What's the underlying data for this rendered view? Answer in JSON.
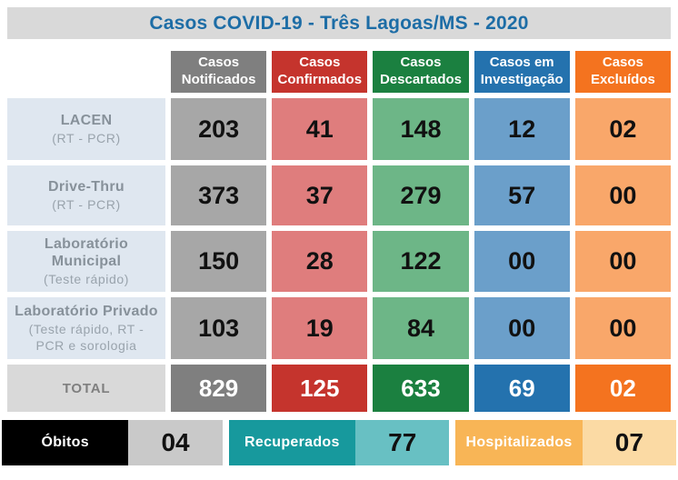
{
  "title": "Casos COVID-19 - Três Lagoas/MS - 2020",
  "columns": [
    {
      "label": "Casos Notificados",
      "color": "#7f7f7f",
      "light_color": "#a7a7a7"
    },
    {
      "label": "Casos Confirmados",
      "color": "#c5342d",
      "light_color": "#df7d7d"
    },
    {
      "label": "Casos Descartados",
      "color": "#1b8040",
      "light_color": "#6db687"
    },
    {
      "label": "Casos em Investigação",
      "color": "#2472ae",
      "light_color": "#6b9fca"
    },
    {
      "label": "Casos Excluídos",
      "color": "#f4731f",
      "light_color": "#f9a76a"
    }
  ],
  "rows": [
    {
      "name": "LACEN",
      "sub": "(RT - PCR)",
      "values": [
        "203",
        "41",
        "148",
        "12",
        "02"
      ]
    },
    {
      "name": "Drive-Thru",
      "sub": "(RT - PCR)",
      "values": [
        "373",
        "37",
        "279",
        "57",
        "00"
      ]
    },
    {
      "name": "Laboratório Municipal",
      "sub": "(Teste rápido)",
      "values": [
        "150",
        "28",
        "122",
        "00",
        "00"
      ]
    },
    {
      "name": "Laboratório Privado",
      "sub": "(Teste rápido, RT - PCR e sorologia",
      "values": [
        "103",
        "19",
        "84",
        "00",
        "00"
      ]
    }
  ],
  "total": {
    "label": "TOTAL",
    "values": [
      "829",
      "125",
      "633",
      "69",
      "02"
    ]
  },
  "summary": [
    {
      "label": "Óbitos",
      "value": "04",
      "label_color": "#000000",
      "value_color": "#c9c9c9"
    },
    {
      "label": "Recuperados",
      "value": "77",
      "label_color": "#17999d",
      "value_color": "#68c0c3"
    },
    {
      "label": "Hospitalizados",
      "value": "07",
      "label_color": "#f8b556",
      "value_color": "#fbdaa4"
    }
  ],
  "colors": {
    "title_text": "#1d6da6",
    "title_background": "#d9d9d9",
    "row_label_background": "#dfe7f0",
    "row_label_text": "#87919a",
    "page_background": "#ffffff"
  },
  "chart_data": {
    "type": "table",
    "title": "Casos COVID-19 - Três Lagoas/MS - 2020",
    "columns": [
      "Casos Notificados",
      "Casos Confirmados",
      "Casos Descartados",
      "Casos em Investigação",
      "Casos Excluídos"
    ],
    "rows": [
      {
        "label": "LACEN (RT - PCR)",
        "values": [
          203,
          41,
          148,
          12,
          2
        ]
      },
      {
        "label": "Drive-Thru (RT - PCR)",
        "values": [
          373,
          37,
          279,
          57,
          0
        ]
      },
      {
        "label": "Laboratório Municipal (Teste rápido)",
        "values": [
          150,
          28,
          122,
          0,
          0
        ]
      },
      {
        "label": "Laboratório Privado (Teste rápido, RT - PCR e sorologia)",
        "values": [
          103,
          19,
          84,
          0,
          0
        ]
      },
      {
        "label": "TOTAL",
        "values": [
          829,
          125,
          633,
          69,
          2
        ]
      }
    ],
    "extras": [
      {
        "label": "Óbitos",
        "value": 4
      },
      {
        "label": "Recuperados",
        "value": 77
      },
      {
        "label": "Hospitalizados",
        "value": 7
      }
    ]
  }
}
